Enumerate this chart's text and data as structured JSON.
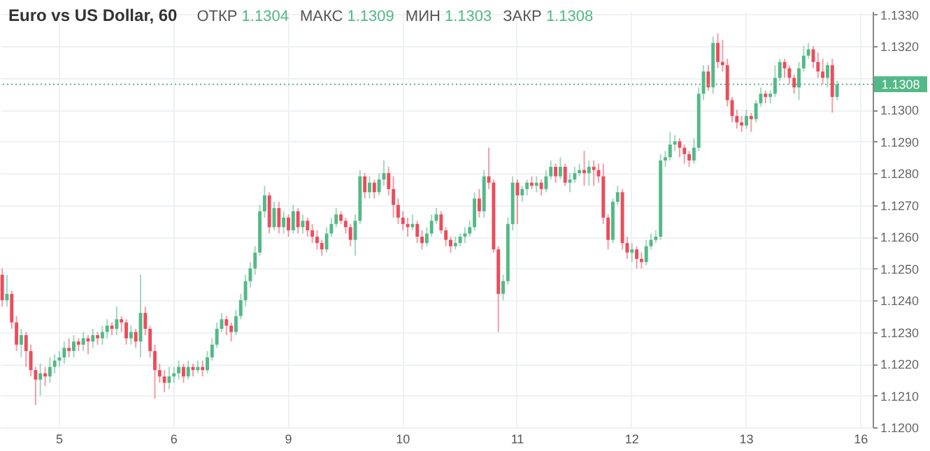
{
  "chart_data": {
    "type": "candlestick",
    "title": "Euro vs US Dollar, 60",
    "annotations": [
      "ОТКР 1.1304",
      "МАКС 1.1309",
      "МИН 1.1303",
      "ЗАКР 1.1308"
    ],
    "categories": [
      null,
      null,
      null,
      null,
      null,
      null,
      null,
      null,
      null,
      null,
      null,
      null,
      "5",
      null,
      null,
      null,
      null,
      null,
      null,
      null,
      null,
      null,
      null,
      null,
      null,
      null,
      null,
      null,
      null,
      null,
      null,
      null,
      null,
      null,
      null,
      null,
      "6",
      null,
      null,
      null,
      null,
      null,
      null,
      null,
      null,
      null,
      null,
      null,
      null,
      null,
      null,
      null,
      null,
      null,
      null,
      null,
      null,
      null,
      null,
      null,
      "9",
      null,
      null,
      null,
      null,
      null,
      null,
      null,
      null,
      null,
      null,
      null,
      null,
      null,
      null,
      null,
      null,
      null,
      null,
      null,
      null,
      null,
      null,
      null,
      "10",
      null,
      null,
      null,
      null,
      null,
      null,
      null,
      null,
      null,
      null,
      null,
      null,
      null,
      null,
      null,
      null,
      null,
      null,
      null,
      null,
      null,
      null,
      null,
      "11",
      null,
      null,
      null,
      null,
      null,
      null,
      null,
      null,
      null,
      null,
      null,
      null,
      null,
      null,
      null,
      null,
      null,
      null,
      null,
      null,
      null,
      null,
      null,
      "12",
      null,
      null,
      null,
      null,
      null,
      null,
      null,
      null,
      null,
      null,
      null,
      null,
      null,
      null,
      null,
      null,
      null,
      null,
      null,
      null,
      null,
      null,
      null,
      "13",
      null,
      null,
      null,
      null,
      null,
      null,
      null,
      null,
      null,
      null,
      null,
      null,
      null,
      null,
      null,
      null,
      null,
      null,
      null,
      null,
      null,
      null,
      null,
      "16",
      null,
      null
    ],
    "ohlc": [
      [
        1.1248,
        1.125,
        1.1238,
        1.124
      ],
      [
        1.124,
        1.1248,
        1.1238,
        1.1242
      ],
      [
        1.1242,
        1.1243,
        1.1231,
        1.1233
      ],
      [
        1.1233,
        1.1235,
        1.1224,
        1.1226
      ],
      [
        1.1226,
        1.1231,
        1.1222,
        1.1229
      ],
      [
        1.1229,
        1.123,
        1.1219,
        1.1224
      ],
      [
        1.1224,
        1.1226,
        1.1216,
        1.1218
      ],
      [
        1.1218,
        1.1219,
        1.1207,
        1.1215
      ],
      [
        1.1215,
        1.122,
        1.121,
        1.1217
      ],
      [
        1.1217,
        1.1219,
        1.1213,
        1.1216
      ],
      [
        1.1216,
        1.1222,
        1.1214,
        1.1219
      ],
      [
        1.1219,
        1.1223,
        1.1217,
        1.1221
      ],
      [
        1.1221,
        1.1224,
        1.1219,
        1.1222
      ],
      [
        1.1222,
        1.1227,
        1.122,
        1.1225
      ],
      [
        1.1225,
        1.1228,
        1.1222,
        1.1224
      ],
      [
        1.1224,
        1.1229,
        1.1222,
        1.1227
      ],
      [
        1.1227,
        1.1228,
        1.1224,
        1.1226
      ],
      [
        1.1226,
        1.123,
        1.1224,
        1.1228
      ],
      [
        1.1228,
        1.1229,
        1.1223,
        1.1227
      ],
      [
        1.1227,
        1.1231,
        1.1225,
        1.1229
      ],
      [
        1.1229,
        1.123,
        1.1226,
        1.1228
      ],
      [
        1.1228,
        1.1232,
        1.1226,
        1.123
      ],
      [
        1.123,
        1.1234,
        1.1228,
        1.1232
      ],
      [
        1.1232,
        1.1233,
        1.1229,
        1.1231
      ],
      [
        1.1231,
        1.1238,
        1.1229,
        1.1234
      ],
      [
        1.1234,
        1.1235,
        1.123,
        1.1233
      ],
      [
        1.1233,
        1.1234,
        1.1226,
        1.1228
      ],
      [
        1.1228,
        1.1232,
        1.1226,
        1.123
      ],
      [
        1.123,
        1.1231,
        1.1225,
        1.1227
      ],
      [
        1.1227,
        1.1248,
        1.1222,
        1.1236
      ],
      [
        1.1236,
        1.1238,
        1.1229,
        1.1231
      ],
      [
        1.1231,
        1.1232,
        1.1222,
        1.1224
      ],
      [
        1.1224,
        1.1226,
        1.1209,
        1.1218
      ],
      [
        1.1218,
        1.122,
        1.1214,
        1.1216
      ],
      [
        1.1216,
        1.1218,
        1.1211,
        1.1214
      ],
      [
        1.1214,
        1.1219,
        1.1212,
        1.1216
      ],
      [
        1.1216,
        1.1219,
        1.1214,
        1.1217
      ],
      [
        1.1217,
        1.1221,
        1.1215,
        1.1219
      ],
      [
        1.1219,
        1.122,
        1.1214,
        1.1216
      ],
      [
        1.1216,
        1.1221,
        1.1215,
        1.1219
      ],
      [
        1.1219,
        1.122,
        1.1216,
        1.1218
      ],
      [
        1.1218,
        1.1221,
        1.1217,
        1.1219
      ],
      [
        1.1219,
        1.1221,
        1.1216,
        1.1218
      ],
      [
        1.1218,
        1.1224,
        1.1217,
        1.1222
      ],
      [
        1.1222,
        1.1228,
        1.1221,
        1.1226
      ],
      [
        1.1226,
        1.1233,
        1.1225,
        1.1231
      ],
      [
        1.1231,
        1.1236,
        1.123,
        1.1234
      ],
      [
        1.1234,
        1.1235,
        1.1229,
        1.1232
      ],
      [
        1.1232,
        1.1233,
        1.1227,
        1.123
      ],
      [
        1.123,
        1.1237,
        1.1229,
        1.1235
      ],
      [
        1.1235,
        1.1242,
        1.1234,
        1.124
      ],
      [
        1.124,
        1.1248,
        1.1238,
        1.1246
      ],
      [
        1.1246,
        1.1252,
        1.1244,
        1.125
      ],
      [
        1.125,
        1.1257,
        1.1248,
        1.1255
      ],
      [
        1.1255,
        1.127,
        1.1254,
        1.1268
      ],
      [
        1.1268,
        1.1276,
        1.1266,
        1.1273
      ],
      [
        1.1273,
        1.1274,
        1.1261,
        1.1263
      ],
      [
        1.1263,
        1.1271,
        1.1262,
        1.1269
      ],
      [
        1.1269,
        1.1271,
        1.1261,
        1.1263
      ],
      [
        1.1263,
        1.1268,
        1.1261,
        1.1266
      ],
      [
        1.1266,
        1.1267,
        1.126,
        1.1262
      ],
      [
        1.1262,
        1.127,
        1.1261,
        1.1268
      ],
      [
        1.1268,
        1.1269,
        1.1261,
        1.1263
      ],
      [
        1.1263,
        1.1267,
        1.1261,
        1.1265
      ],
      [
        1.1265,
        1.1266,
        1.126,
        1.1262
      ],
      [
        1.1262,
        1.1264,
        1.1258,
        1.126
      ],
      [
        1.126,
        1.1262,
        1.1256,
        1.1258
      ],
      [
        1.1258,
        1.1259,
        1.1254,
        1.1256
      ],
      [
        1.1256,
        1.1263,
        1.1255,
        1.1261
      ],
      [
        1.1261,
        1.1266,
        1.126,
        1.1264
      ],
      [
        1.1264,
        1.1269,
        1.1263,
        1.1267
      ],
      [
        1.1267,
        1.1268,
        1.1264,
        1.1265
      ],
      [
        1.1265,
        1.1266,
        1.1261,
        1.1263
      ],
      [
        1.1263,
        1.1264,
        1.1257,
        1.1259
      ],
      [
        1.1259,
        1.1267,
        1.1254,
        1.1265
      ],
      [
        1.1265,
        1.1281,
        1.1264,
        1.1279
      ],
      [
        1.1279,
        1.128,
        1.1272,
        1.1274
      ],
      [
        1.1274,
        1.1279,
        1.1272,
        1.1277
      ],
      [
        1.1277,
        1.1278,
        1.1272,
        1.1274
      ],
      [
        1.1274,
        1.128,
        1.1273,
        1.1278
      ],
      [
        1.1278,
        1.1284,
        1.1276,
        1.128
      ],
      [
        1.128,
        1.1282,
        1.1273,
        1.1275
      ],
      [
        1.1275,
        1.1279,
        1.1266,
        1.127
      ],
      [
        1.127,
        1.1272,
        1.1264,
        1.1266
      ],
      [
        1.1266,
        1.1268,
        1.1262,
        1.1264
      ],
      [
        1.1264,
        1.1266,
        1.126,
        1.1263
      ],
      [
        1.1263,
        1.1267,
        1.1262,
        1.1264
      ],
      [
        1.1264,
        1.1265,
        1.1258,
        1.126
      ],
      [
        1.126,
        1.1262,
        1.1256,
        1.1258
      ],
      [
        1.1258,
        1.1263,
        1.1257,
        1.1261
      ],
      [
        1.1261,
        1.1267,
        1.126,
        1.1265
      ],
      [
        1.1265,
        1.1269,
        1.1264,
        1.1267
      ],
      [
        1.1267,
        1.1268,
        1.1261,
        1.1262
      ],
      [
        1.1262,
        1.1263,
        1.1257,
        1.1259
      ],
      [
        1.1259,
        1.126,
        1.1255,
        1.1257
      ],
      [
        1.1257,
        1.126,
        1.1256,
        1.1258
      ],
      [
        1.1258,
        1.1261,
        1.1257,
        1.126
      ],
      [
        1.126,
        1.1263,
        1.1258,
        1.1261
      ],
      [
        1.1261,
        1.1265,
        1.126,
        1.1263
      ],
      [
        1.1263,
        1.1274,
        1.1262,
        1.1272
      ],
      [
        1.1272,
        1.1275,
        1.1266,
        1.1268
      ],
      [
        1.1268,
        1.1281,
        1.1266,
        1.1279
      ],
      [
        1.1279,
        1.1288,
        1.1275,
        1.1277
      ],
      [
        1.1277,
        1.1278,
        1.1255,
        1.1256
      ],
      [
        1.1256,
        1.1257,
        1.123,
        1.1242
      ],
      [
        1.1242,
        1.1248,
        1.124,
        1.1246
      ],
      [
        1.1246,
        1.1266,
        1.1245,
        1.1264
      ],
      [
        1.1264,
        1.1279,
        1.1262,
        1.1277
      ],
      [
        1.1277,
        1.1278,
        1.1264,
        1.1273
      ],
      [
        1.1273,
        1.1276,
        1.1271,
        1.1275
      ],
      [
        1.1275,
        1.1278,
        1.1273,
        1.1277
      ],
      [
        1.1277,
        1.1279,
        1.1275,
        1.1276
      ],
      [
        1.1276,
        1.1279,
        1.1274,
        1.1277
      ],
      [
        1.1277,
        1.1278,
        1.1273,
        1.1275
      ],
      [
        1.1275,
        1.1281,
        1.1274,
        1.1279
      ],
      [
        1.1279,
        1.1284,
        1.1278,
        1.1282
      ],
      [
        1.1282,
        1.1283,
        1.1277,
        1.1279
      ],
      [
        1.1279,
        1.1285,
        1.1278,
        1.1282
      ],
      [
        1.1282,
        1.1283,
        1.1276,
        1.1277
      ],
      [
        1.1277,
        1.128,
        1.1274,
        1.1278
      ],
      [
        1.1278,
        1.1282,
        1.1277,
        1.128
      ],
      [
        1.128,
        1.1283,
        1.1279,
        1.1281
      ],
      [
        1.1281,
        1.1287,
        1.1276,
        1.128
      ],
      [
        1.128,
        1.1284,
        1.1276,
        1.1282
      ],
      [
        1.1282,
        1.1284,
        1.1276,
        1.1281
      ],
      [
        1.1281,
        1.1283,
        1.1277,
        1.1279
      ],
      [
        1.1279,
        1.1283,
        1.1264,
        1.1266
      ],
      [
        1.1266,
        1.1267,
        1.1256,
        1.1259
      ],
      [
        1.1259,
        1.1272,
        1.1258,
        1.1271
      ],
      [
        1.1271,
        1.1276,
        1.127,
        1.1274
      ],
      [
        1.1274,
        1.1275,
        1.1256,
        1.1258
      ],
      [
        1.1258,
        1.126,
        1.1253,
        1.1255
      ],
      [
        1.1255,
        1.1258,
        1.1252,
        1.1256
      ],
      [
        1.1256,
        1.1257,
        1.125,
        1.1253
      ],
      [
        1.1253,
        1.1255,
        1.125,
        1.1252
      ],
      [
        1.1252,
        1.1259,
        1.1251,
        1.1257
      ],
      [
        1.1257,
        1.1261,
        1.1256,
        1.1259
      ],
      [
        1.1259,
        1.1262,
        1.1258,
        1.126
      ],
      [
        1.126,
        1.1286,
        1.1259,
        1.1284
      ],
      [
        1.1284,
        1.1287,
        1.1282,
        1.1285
      ],
      [
        1.1285,
        1.1293,
        1.1284,
        1.1289
      ],
      [
        1.1289,
        1.1292,
        1.1287,
        1.129
      ],
      [
        1.129,
        1.1291,
        1.1285,
        1.1288
      ],
      [
        1.1288,
        1.1289,
        1.1283,
        1.1286
      ],
      [
        1.1286,
        1.1287,
        1.1282,
        1.1284
      ],
      [
        1.1284,
        1.1291,
        1.1283,
        1.1288
      ],
      [
        1.1288,
        1.1307,
        1.1287,
        1.1305
      ],
      [
        1.1305,
        1.1314,
        1.1303,
        1.1312
      ],
      [
        1.1312,
        1.1314,
        1.1306,
        1.1307
      ],
      [
        1.1307,
        1.1323,
        1.1305,
        1.1321
      ],
      [
        1.1321,
        1.1324,
        1.1313,
        1.1315
      ],
      [
        1.1315,
        1.1322,
        1.1312,
        1.1314
      ],
      [
        1.1314,
        1.1316,
        1.1301,
        1.1303
      ],
      [
        1.1303,
        1.1304,
        1.1296,
        1.1298
      ],
      [
        1.1298,
        1.13,
        1.1294,
        1.1296
      ],
      [
        1.1296,
        1.1298,
        1.1293,
        1.1295
      ],
      [
        1.1295,
        1.13,
        1.1294,
        1.1298
      ],
      [
        1.1298,
        1.1299,
        1.1293,
        1.1297
      ],
      [
        1.1297,
        1.1303,
        1.1296,
        1.1302
      ],
      [
        1.1302,
        1.1307,
        1.1301,
        1.1305
      ],
      [
        1.1305,
        1.1306,
        1.1302,
        1.1304
      ],
      [
        1.1304,
        1.1306,
        1.1302,
        1.1305
      ],
      [
        1.1305,
        1.1314,
        1.1304,
        1.131
      ],
      [
        1.131,
        1.1316,
        1.1309,
        1.1315
      ],
      [
        1.1315,
        1.1316,
        1.131,
        1.1313
      ],
      [
        1.1313,
        1.1314,
        1.1308,
        1.131
      ],
      [
        1.131,
        1.1311,
        1.1305,
        1.1307
      ],
      [
        1.1307,
        1.1315,
        1.1303,
        1.1313
      ],
      [
        1.1313,
        1.132,
        1.1312,
        1.1317
      ],
      [
        1.1317,
        1.1321,
        1.1316,
        1.1319
      ],
      [
        1.1319,
        1.132,
        1.1313,
        1.1315
      ],
      [
        1.1315,
        1.1318,
        1.131,
        1.1312
      ],
      [
        1.1312,
        1.1316,
        1.1308,
        1.131
      ],
      [
        1.131,
        1.1315,
        1.1307,
        1.1314
      ],
      [
        1.1314,
        1.1316,
        1.1299,
        1.1304
      ],
      [
        1.1304,
        1.1309,
        1.1303,
        1.1308
      ],
      null,
      null,
      null,
      null,
      null,
      null,
      null
    ],
    "ylim": [
      1.12,
      1.1331
    ],
    "yticks": [
      {
        "value": 1.12,
        "label": "1.1200"
      },
      {
        "value": 1.121,
        "label": "1.1210"
      },
      {
        "value": 1.122,
        "label": "1.1220"
      },
      {
        "value": 1.123,
        "label": "1.1230"
      },
      {
        "value": 1.124,
        "label": "1.1240"
      },
      {
        "value": 1.125,
        "label": "1.1250"
      },
      {
        "value": 1.126,
        "label": "1.1260"
      },
      {
        "value": 1.127,
        "label": "1.1270"
      },
      {
        "value": 1.128,
        "label": "1.1280"
      },
      {
        "value": 1.129,
        "label": "1.1290"
      },
      {
        "value": 1.13,
        "label": "1.1300"
      },
      {
        "value": 1.131,
        "label": null
      },
      {
        "value": 1.132,
        "label": "1.1320"
      },
      {
        "value": 1.133,
        "label": "1.1330"
      }
    ],
    "ref_lines": [
      {
        "axis": "y",
        "value": 1.1308,
        "label": "1.1308",
        "color": "#53b987",
        "line_style": "dotted"
      }
    ],
    "grid": true
  }
}
